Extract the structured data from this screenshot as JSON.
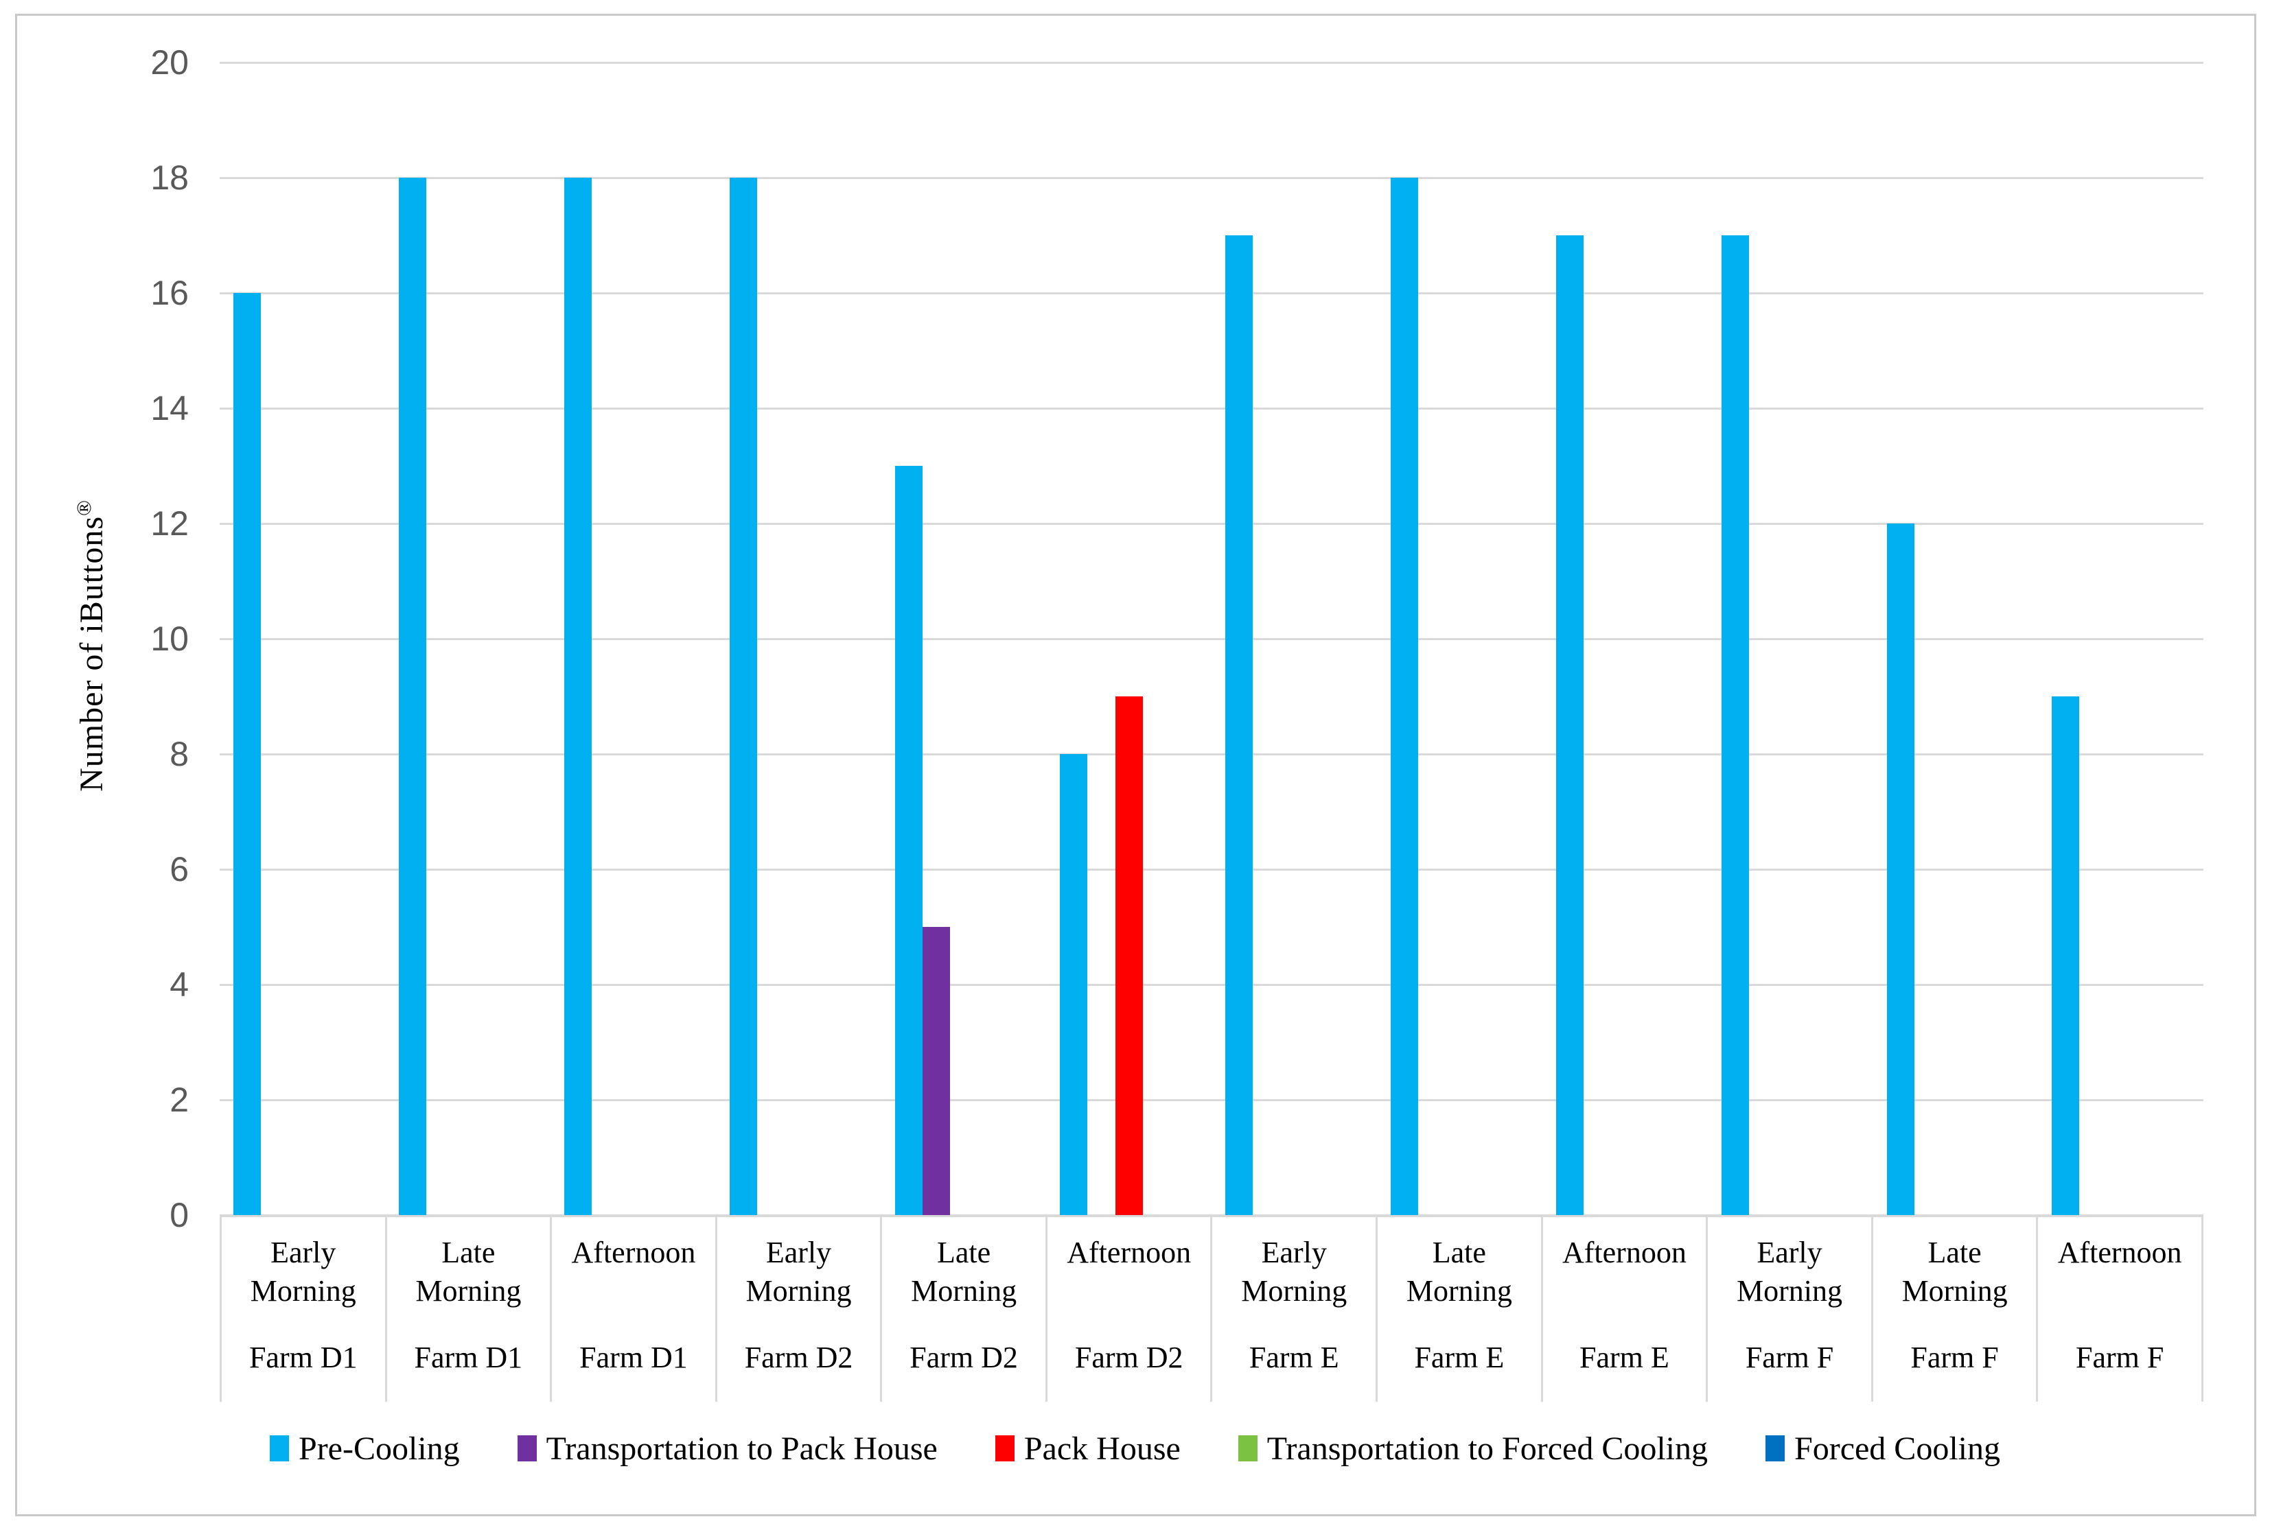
{
  "chart_data": {
    "type": "bar",
    "title": "",
    "ylabel": "Number of iButtons®",
    "ylabel_base": "Number of iButtons",
    "ylabel_sup": "®",
    "xlabel": "",
    "ylim": [
      0,
      20
    ],
    "ytick_step": 2,
    "yticks": [
      0,
      2,
      4,
      6,
      8,
      10,
      12,
      14,
      16,
      18,
      20
    ],
    "grid": true,
    "legend_position": "bottom",
    "categories": [
      {
        "time": "Early Morning",
        "farm": "Farm D1"
      },
      {
        "time": "Late Morning",
        "farm": "Farm D1"
      },
      {
        "time": "Afternoon",
        "farm": "Farm D1"
      },
      {
        "time": "Early Morning",
        "farm": "Farm D2"
      },
      {
        "time": "Late Morning",
        "farm": "Farm D2"
      },
      {
        "time": "Afternoon",
        "farm": "Farm D2"
      },
      {
        "time": "Early Morning",
        "farm": "Farm E"
      },
      {
        "time": "Late Morning",
        "farm": "Farm E"
      },
      {
        "time": "Afternoon",
        "farm": "Farm E"
      },
      {
        "time": "Early Morning",
        "farm": "Farm F"
      },
      {
        "time": "Late Morning",
        "farm": "Farm F"
      },
      {
        "time": "Afternoon",
        "farm": "Farm F"
      }
    ],
    "series": [
      {
        "name": "Pre-Cooling",
        "color": "#00B0F0",
        "values": [
          16,
          18,
          18,
          18,
          13,
          8,
          17,
          18,
          17,
          17,
          12,
          9
        ]
      },
      {
        "name": "Transportation to Pack House",
        "color": "#7030A0",
        "values": [
          null,
          null,
          null,
          null,
          5,
          null,
          null,
          null,
          null,
          null,
          null,
          null
        ]
      },
      {
        "name": "Pack House",
        "color": "#FF0000",
        "values": [
          null,
          null,
          null,
          null,
          null,
          9,
          null,
          null,
          null,
          null,
          null,
          null
        ]
      },
      {
        "name": "Transportation to Forced Cooling",
        "color": "#7CC242",
        "values": [
          null,
          null,
          null,
          null,
          null,
          null,
          null,
          null,
          null,
          null,
          null,
          null
        ]
      },
      {
        "name": "Forced Cooling",
        "color": "#0070C0",
        "values": [
          null,
          null,
          null,
          null,
          null,
          null,
          null,
          null,
          null,
          null,
          null,
          null
        ]
      }
    ],
    "axis_colors": {
      "tick_label": "#595959",
      "gridline": "#D9D9D9",
      "category_text": "#000000",
      "chart_border": "#C9C9C9"
    }
  }
}
